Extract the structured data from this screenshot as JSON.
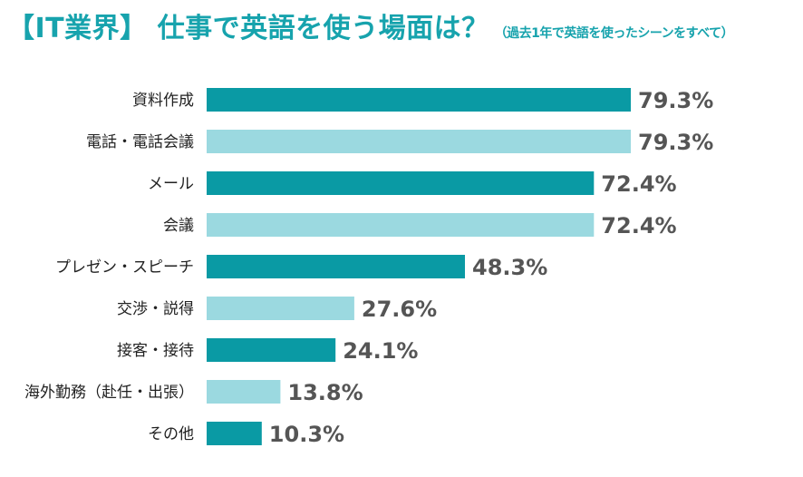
{
  "title": "【IT業界】 仕事で英語を使う場面は？",
  "subtitle": "（過去1年で英語を使ったシーンをすべて）",
  "colors": {
    "title": "#17a3ad",
    "bar_dark": "#0a9aa4",
    "bar_light": "#9bd9e0",
    "category_text": "#222222",
    "value_text": "#555555"
  },
  "chart_data": {
    "type": "bar",
    "orientation": "horizontal",
    "title": "【IT業界】 仕事で英語を使う場面は？",
    "subtitle": "（過去1年で英語を使ったシーンをすべて）",
    "categories": [
      "資料作成",
      "電話・電話会議",
      "メール",
      "会議",
      "プレゼン・スピーチ",
      "交渉・説得",
      "接客・接待",
      "海外勤務（赴任・出張）",
      "その他"
    ],
    "values": [
      79.3,
      79.3,
      72.4,
      72.4,
      48.3,
      27.6,
      24.1,
      13.8,
      10.3
    ],
    "value_labels": [
      "79.3%",
      "79.3%",
      "72.4%",
      "72.4%",
      "48.3%",
      "27.6%",
      "24.1%",
      "13.8%",
      "10.3%"
    ],
    "bar_shades": [
      "dark",
      "light",
      "dark",
      "light",
      "dark",
      "light",
      "dark",
      "light",
      "dark"
    ],
    "unit": "%",
    "xlim": [
      0,
      100
    ],
    "grid": false,
    "legend": "none"
  }
}
